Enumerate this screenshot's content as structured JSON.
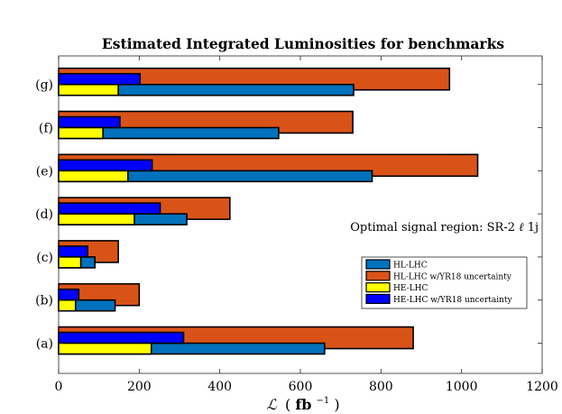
{
  "chart_data": {
    "type": "bar",
    "orientation": "horizontal",
    "title": "Estimated Integrated Luminosities for benchmarks",
    "xlabel_main": "ℒ",
    "xlabel_unit_prefix": "(",
    "xlabel_unit_bold": "fb",
    "xlabel_unit_sup": "−1",
    "xlabel_unit_suffix": ")",
    "xlim": [
      0,
      1200
    ],
    "xticks": [
      0,
      200,
      400,
      600,
      800,
      1000,
      1200
    ],
    "xtick_labels": [
      "0",
      "200",
      "400",
      "600",
      "800",
      "1000",
      "1200"
    ],
    "categories": [
      "(a)",
      "(b)",
      "(c)",
      "(d)",
      "(e)",
      "(f)",
      "(g)"
    ],
    "series": [
      {
        "name": "HL-LHC",
        "color": "#0072BD",
        "values": [
          660,
          140,
          90,
          318,
          778,
          546,
          732
        ]
      },
      {
        "name": "HL-LHC w/YR18 uncertainty",
        "color": "#D95319",
        "values": [
          880,
          200,
          148,
          425,
          1040,
          730,
          970
        ]
      },
      {
        "name": "HE-LHC",
        "color": "#FFFF00",
        "values": [
          230,
          42,
          55,
          188,
          172,
          110,
          148
        ]
      },
      {
        "name": "HE-LHC w/YR18 uncertainty",
        "color": "#0000FF",
        "values": [
          310,
          50,
          72,
          252,
          232,
          152,
          202
        ]
      }
    ],
    "annotation_prefix": "Optimal signal region: SR-2",
    "annotation_ell": "ℓ",
    "annotation_suffix": "1j",
    "legend_position": "right"
  }
}
